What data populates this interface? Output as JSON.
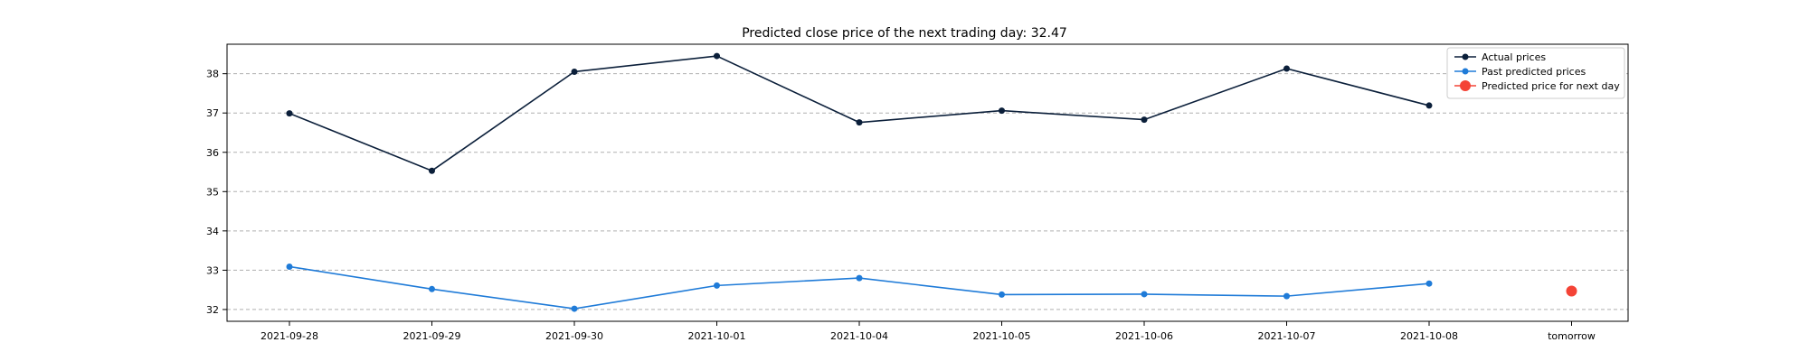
{
  "chart_data": {
    "type": "line",
    "title": "Predicted close price of the next trading day: 32.47",
    "xlabel": "",
    "ylabel": "",
    "categories": [
      "2021-09-28",
      "2021-09-29",
      "2021-09-30",
      "2021-10-01",
      "2021-10-04",
      "2021-10-05",
      "2021-10-06",
      "2021-10-07",
      "2021-10-08",
      "tomorrow"
    ],
    "ylim": [
      31.7,
      38.75
    ],
    "yticks": [
      32,
      33,
      34,
      35,
      36,
      37,
      38
    ],
    "grid": "horizontal dashed",
    "legend_position": "top-right",
    "series": [
      {
        "name": "Actual prices",
        "color": "#0b1f3a",
        "marker": "circle",
        "values": [
          36.99,
          35.53,
          38.05,
          38.45,
          36.76,
          37.06,
          36.83,
          38.13,
          37.19,
          null
        ]
      },
      {
        "name": "Past predicted prices",
        "color": "#1f7bd8",
        "marker": "circle",
        "values": [
          33.09,
          32.52,
          32.02,
          32.61,
          32.8,
          32.38,
          32.39,
          32.34,
          32.66,
          null
        ]
      },
      {
        "name": "Predicted price for next day",
        "color": "#f44336",
        "marker": "large-circle",
        "values": [
          null,
          null,
          null,
          null,
          null,
          null,
          null,
          null,
          null,
          32.47
        ]
      }
    ]
  }
}
